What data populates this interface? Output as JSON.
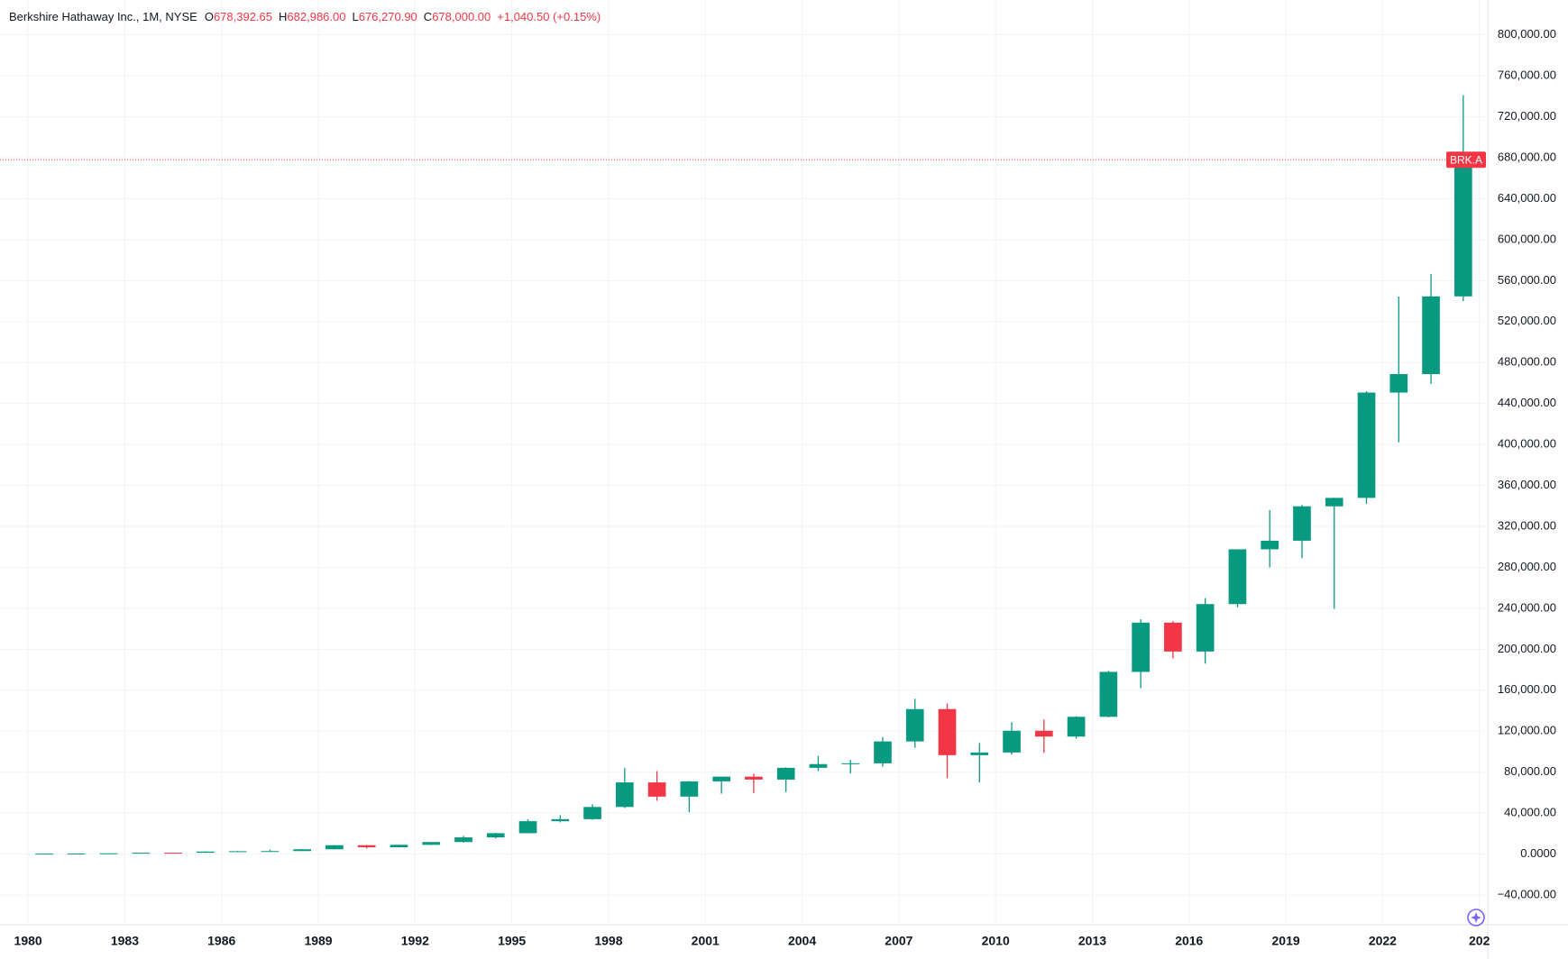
{
  "chart_data": {
    "type": "candlestick",
    "title": "Berkshire Hathaway Inc., 1M, NYSE",
    "legend_labels": [
      "O",
      "H",
      "L",
      "C"
    ],
    "legend_values": [
      "678,392.65",
      "682,986.00",
      "676,270.90",
      "678,000.00"
    ],
    "change": "+1,040.50 (+0.15%)",
    "symbol": "BRK.A",
    "last_price": 678000,
    "up_color": "#089981",
    "down_color": "#f23645",
    "grid": true,
    "x": [
      1980,
      1981,
      1982,
      1983,
      1984,
      1985,
      1986,
      1987,
      1988,
      1989,
      1990,
      1991,
      1992,
      1993,
      1994,
      1995,
      1996,
      1997,
      1998,
      1999,
      2000,
      2001,
      2002,
      2003,
      2004,
      2005,
      2006,
      2007,
      2008,
      2009,
      2010,
      2011,
      2012,
      2013,
      2014,
      2015,
      2016,
      2017,
      2018,
      2019,
      2020,
      2021,
      2022,
      2023,
      2024
    ],
    "open": [
      285,
      425,
      560,
      775,
      1310,
      1275,
      2470,
      2820,
      2950,
      4700,
      8675,
      6675,
      9050,
      11750,
      16325,
      20400,
      32100,
      34100,
      46000,
      70000,
      56100,
      71000,
      75600,
      72750,
      84250,
      87900,
      88620,
      109990,
      141600,
      96600,
      99200,
      120450,
      114755,
      134060,
      177900,
      226000,
      197800,
      244121,
      297600,
      306000,
      339590,
      347815,
      450662,
      468711,
      544589
    ],
    "high": [
      490,
      560,
      775,
      1310,
      1360,
      2600,
      3170,
      4270,
      4800,
      8900,
      8900,
      9100,
      11800,
      17800,
      20800,
      34000,
      38000,
      48600,
      84000,
      81100,
      71300,
      75600,
      78500,
      84700,
      95700,
      92000,
      114200,
      151650,
      147000,
      108450,
      128730,
      131463,
      134700,
      178900,
      229374,
      227500,
      250000,
      297600,
      335900,
      341000,
      348000,
      452000,
      544389,
      566570,
      741000
    ],
    "low": [
      260,
      410,
      465,
      775,
      1220,
      1275,
      2450,
      2550,
      2950,
      4600,
      5500,
      6500,
      8700,
      11300,
      15200,
      20300,
      31000,
      33500,
      45000,
      52000,
      40800,
      59000,
      59600,
      60600,
      81000,
      78800,
      85400,
      103800,
      74100,
      70050,
      97205,
      98952,
      112700,
      133500,
      162000,
      191000,
      186000,
      241000,
      279900,
      289000,
      239440,
      342000,
      402000,
      459000,
      540000
    ],
    "close": [
      425,
      560,
      775,
      1310,
      1275,
      2470,
      2820,
      2950,
      4700,
      8675,
      6675,
      9050,
      11750,
      16325,
      20400,
      32100,
      34100,
      46000,
      70000,
      56100,
      71000,
      75600,
      72750,
      84250,
      87900,
      88620,
      109990,
      141600,
      96600,
      99200,
      120450,
      114755,
      134060,
      177900,
      226000,
      197800,
      244121,
      297600,
      306000,
      339590,
      347815,
      450662,
      468711,
      544589,
      678000
    ],
    "xlim": [
      1979.13,
      2025.26
    ],
    "xticks": [
      1980,
      1983,
      1986,
      1989,
      1992,
      1995,
      1998,
      2001,
      2004,
      2007,
      2010,
      2013,
      2016,
      2019,
      2022,
      {
        "value": 2025,
        "label": "202"
      }
    ],
    "ylim": [
      -69000,
      834000
    ],
    "yticks": [
      {
        "value": -40000,
        "label": "−40,000.00"
      },
      {
        "value": 0,
        "label": "0.0000"
      },
      {
        "value": 40000,
        "label": "40,000.00"
      },
      {
        "value": 80000,
        "label": "80,000.00"
      },
      {
        "value": 120000,
        "label": "120,000.00"
      },
      {
        "value": 160000,
        "label": "160,000.00"
      },
      {
        "value": 200000,
        "label": "200,000.00"
      },
      {
        "value": 240000,
        "label": "240,000.00"
      },
      {
        "value": 280000,
        "label": "280,000.00"
      },
      {
        "value": 320000,
        "label": "320,000.00"
      },
      {
        "value": 360000,
        "label": "360,000.00"
      },
      {
        "value": 400000,
        "label": "400,000.00"
      },
      {
        "value": 440000,
        "label": "440,000.00"
      },
      {
        "value": 480000,
        "label": "480,000.00"
      },
      {
        "value": 520000,
        "label": "520,000.00"
      },
      {
        "value": 560000,
        "label": "560,000.00"
      },
      {
        "value": 600000,
        "label": "600,000.00"
      },
      {
        "value": 640000,
        "label": "640,000.00"
      },
      {
        "value": 680000,
        "label": "680,000.00"
      },
      {
        "value": 720000,
        "label": "720,000.00"
      },
      {
        "value": 760000,
        "label": "760,000.00"
      },
      {
        "value": 800000,
        "label": "800,000.00"
      }
    ]
  }
}
